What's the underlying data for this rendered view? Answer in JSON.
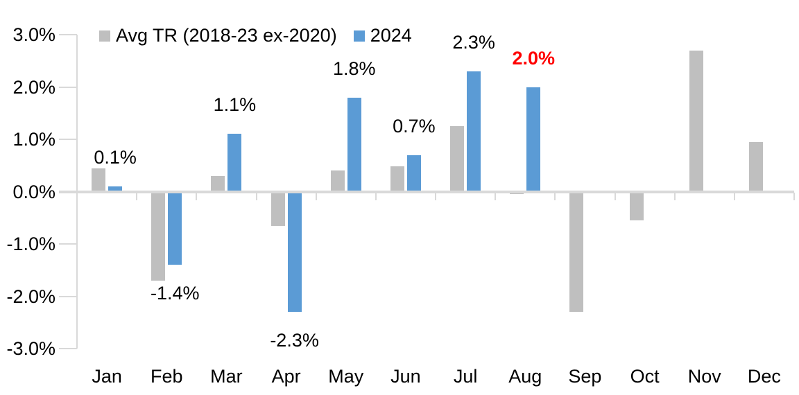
{
  "chart_data": {
    "type": "bar",
    "title": "",
    "categories": [
      "Jan",
      "Feb",
      "Mar",
      "Apr",
      "May",
      "Jun",
      "Jul",
      "Aug",
      "Sep",
      "Oct",
      "Nov",
      "Dec"
    ],
    "series": [
      {
        "name": "Avg TR (2018-23 ex-2020)",
        "color": "#bfbfbf",
        "values": [
          0.45,
          -1.7,
          0.3,
          -0.65,
          0.4,
          0.48,
          1.25,
          -0.05,
          -2.3,
          -0.55,
          2.7,
          0.95
        ]
      },
      {
        "name": "2024",
        "color": "#5b9bd5",
        "values": [
          0.1,
          -1.4,
          1.1,
          -2.3,
          1.8,
          0.7,
          2.3,
          2.0,
          null,
          null,
          null,
          null
        ]
      }
    ],
    "data_labels": [
      {
        "month": "Jan",
        "text": "0.1%",
        "color": "#000000",
        "bold": false
      },
      {
        "month": "Feb",
        "text": "-1.4%",
        "color": "#000000",
        "bold": false
      },
      {
        "month": "Mar",
        "text": "1.1%",
        "color": "#000000",
        "bold": false
      },
      {
        "month": "Apr",
        "text": "-2.3%",
        "color": "#000000",
        "bold": false
      },
      {
        "month": "May",
        "text": "1.8%",
        "color": "#000000",
        "bold": false
      },
      {
        "month": "Jun",
        "text": "0.7%",
        "color": "#000000",
        "bold": false
      },
      {
        "month": "Jul",
        "text": "2.3%",
        "color": "#000000",
        "bold": false
      },
      {
        "month": "Aug",
        "text": "2.0%",
        "color": "#ff0000",
        "bold": true
      }
    ],
    "y_axis": {
      "ticks": [
        "3.0%",
        "2.0%",
        "1.0%",
        "0.0%",
        "-1.0%",
        "-2.0%",
        "-3.0%"
      ],
      "min": -3.0,
      "max": 3.0,
      "step": 1.0,
      "unit": "%"
    },
    "x_axis": {
      "labels": [
        "Jan",
        "Feb",
        "Mar",
        "Apr",
        "May",
        "Jun",
        "Jul",
        "Aug",
        "Sep",
        "Oct",
        "Nov",
        "Dec"
      ]
    },
    "grid": "off",
    "legend_position": "top-left",
    "axis_color": "#d9d9d9",
    "background_color": "#ffffff"
  },
  "legend": {
    "items": [
      {
        "label": "Avg TR (2018-23 ex-2020)",
        "color": "#bfbfbf"
      },
      {
        "label": "2024",
        "color": "#5b9bd5"
      }
    ]
  }
}
